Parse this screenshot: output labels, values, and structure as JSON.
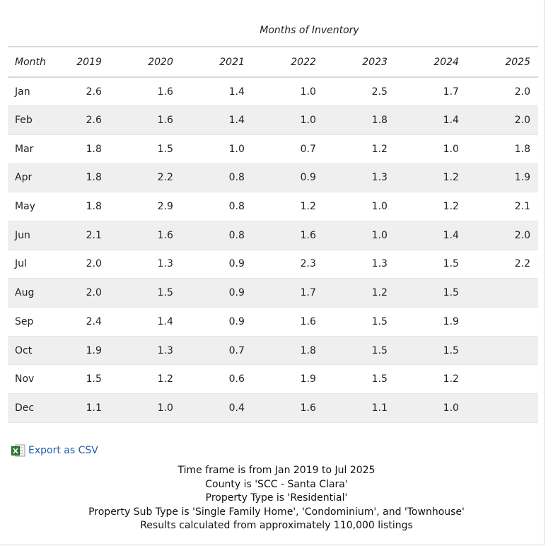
{
  "table": {
    "caption": "Months of Inventory",
    "headers": [
      "Month",
      "2019",
      "2020",
      "2021",
      "2022",
      "2023",
      "2024",
      "2025"
    ],
    "rows": [
      [
        "Jan",
        "2.6",
        "1.6",
        "1.4",
        "1.0",
        "2.5",
        "1.7",
        "2.0"
      ],
      [
        "Feb",
        "2.6",
        "1.6",
        "1.4",
        "1.0",
        "1.8",
        "1.4",
        "2.0"
      ],
      [
        "Mar",
        "1.8",
        "1.5",
        "1.0",
        "0.7",
        "1.2",
        "1.0",
        "1.8"
      ],
      [
        "Apr",
        "1.8",
        "2.2",
        "0.8",
        "0.9",
        "1.3",
        "1.2",
        "1.9"
      ],
      [
        "May",
        "1.8",
        "2.9",
        "0.8",
        "1.2",
        "1.0",
        "1.2",
        "2.1"
      ],
      [
        "Jun",
        "2.1",
        "1.6",
        "0.8",
        "1.6",
        "1.0",
        "1.4",
        "2.0"
      ],
      [
        "Jul",
        "2.0",
        "1.3",
        "0.9",
        "2.3",
        "1.3",
        "1.5",
        "2.2"
      ],
      [
        "Aug",
        "2.0",
        "1.5",
        "0.9",
        "1.7",
        "1.2",
        "1.5",
        ""
      ],
      [
        "Sep",
        "2.4",
        "1.4",
        "0.9",
        "1.6",
        "1.5",
        "1.9",
        ""
      ],
      [
        "Oct",
        "1.9",
        "1.3",
        "0.7",
        "1.8",
        "1.5",
        "1.5",
        ""
      ],
      [
        "Nov",
        "1.5",
        "1.2",
        "0.6",
        "1.9",
        "1.5",
        "1.2",
        ""
      ],
      [
        "Dec",
        "1.1",
        "1.0",
        "0.4",
        "1.6",
        "1.1",
        "1.0",
        ""
      ]
    ]
  },
  "export": {
    "label": "Export as CSV",
    "icon": "excel-csv-icon"
  },
  "footer": {
    "lines": [
      "Time frame is from Jan 2019 to Jul 2025",
      "County is 'SCC - Santa Clara'",
      "Property Type is 'Residential'",
      "Property Sub Type is 'Single Family Home', 'Condominium', and 'Townhouse'",
      "Results calculated from approximately 110,000 listings"
    ]
  },
  "colors": {
    "link": "#1d5fa8",
    "stripe": "#efefef",
    "border": "#d9d9d9",
    "icon_green": "#2e7d32"
  }
}
